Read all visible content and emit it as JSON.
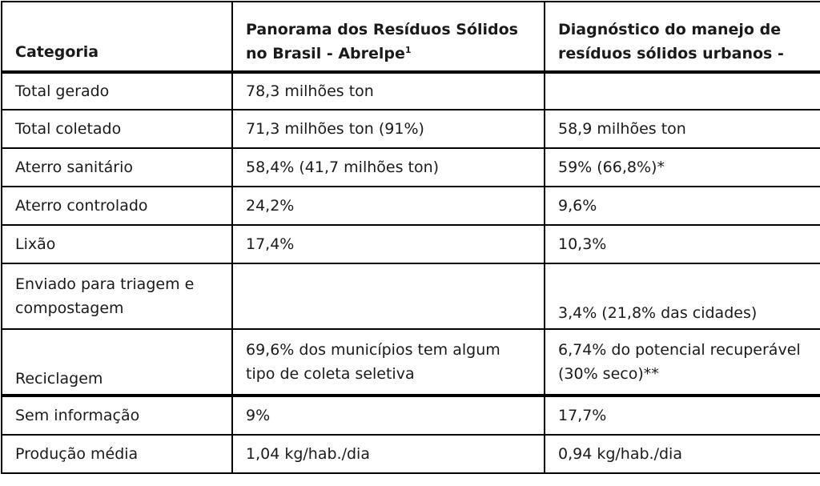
{
  "table": {
    "headers": {
      "category": "Categoria",
      "col_a_line1": "Panorama dos Resíduos Sólidos",
      "col_a_line2": "no Brasil - Abrelpe",
      "col_a_sup": "1",
      "col_b_line1": "Diagnóstico do manejo de",
      "col_b_line2": "resíduos sólidos urbanos  -"
    },
    "rows": [
      {
        "category": "Total gerado",
        "a": "78,3 milhões ton",
        "b": ""
      },
      {
        "category": "Total coletado",
        "a": "71,3 milhões ton (91%)",
        "b": "58,9 milhões ton"
      },
      {
        "category": "Aterro sanitário",
        "a": "58,4% (41,7 milhões ton)",
        "b": "59% (66,8%)*"
      },
      {
        "category": "Aterro controlado",
        "a": "24,2%",
        "b": "9,6%"
      },
      {
        "category": "Lixão",
        "a": "17,4%",
        "b": "10,3%"
      },
      {
        "category_line1": "Enviado para triagem e",
        "category_line2": "compostagem",
        "a": "",
        "b": "3,4% (21,8% das cidades)"
      },
      {
        "category": "Reciclagem",
        "a_line1": "69,6% dos municípios tem algum",
        "a_line2": "tipo de coleta seletiva",
        "b_line1": "6,74% do potencial recuperável",
        "b_line2": "(30% seco)**"
      },
      {
        "category": "Sem informação",
        "a": "9%",
        "b": "17,7%"
      },
      {
        "category": "Produção média",
        "a": "1,04 kg/hab./dia",
        "b": "0,94 kg/hab./dia"
      }
    ]
  }
}
